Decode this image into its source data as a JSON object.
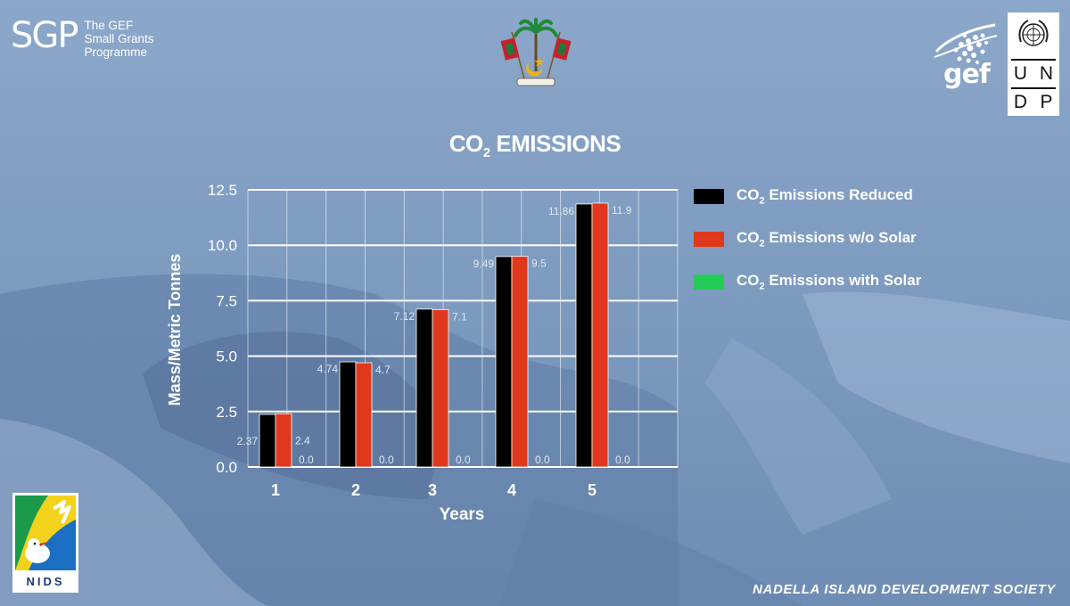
{
  "header": {
    "sgp_logo": {
      "big": "SGP",
      "lines": [
        "The GEF",
        "Small Grants",
        "Programme"
      ]
    },
    "emblem_icon": "maldives-emblem-icon",
    "gef_logo": {
      "text": "gef",
      "icon": "gef-globe-icon"
    },
    "undp_logo": {
      "letters": [
        "U",
        "N",
        "D",
        "P"
      ],
      "icon": "un-emblem-icon"
    }
  },
  "chart_title": {
    "main": "CO",
    "sub": "2",
    "rest": " EMISSIONS"
  },
  "chart_data": {
    "type": "bar",
    "title": "CO2 EMISSIONS",
    "xlabel": "Years",
    "ylabel": "Mass/Metric Tonnes",
    "categories": [
      "1",
      "2",
      "3",
      "4",
      "5"
    ],
    "ylim": [
      0,
      12.5
    ],
    "yticks": [
      "0.0",
      "2.5",
      "5.0",
      "7.5",
      "10.0",
      "12.5"
    ],
    "grid": true,
    "legend_position": "right",
    "series": [
      {
        "name": "CO2 Emissions Reduced",
        "values": [
          2.37,
          4.74,
          7.12,
          9.49,
          11.86
        ],
        "labels": [
          "2.37",
          "4.74",
          "7.12",
          "9.49",
          "11.86"
        ],
        "color": "#000000"
      },
      {
        "name": "CO2 Emissions w/o Solar",
        "values": [
          2.4,
          4.7,
          7.1,
          9.5,
          11.9
        ],
        "labels": [
          "2.4",
          "4.7",
          "7.1",
          "9.5",
          "11.9"
        ],
        "color": "#e0381c"
      },
      {
        "name": "CO2 Emissions with Solar",
        "values": [
          0,
          0,
          0,
          0,
          0
        ],
        "labels": [
          "0.0",
          "0.0",
          "0.0",
          "0.0",
          "0.0"
        ],
        "color": "#22cc55"
      }
    ]
  },
  "legend": [
    {
      "pre": "CO",
      "sub": "2",
      "post": " Emissions Reduced",
      "color": "#000000"
    },
    {
      "pre": "CO",
      "sub": "2",
      "post": " Emissions w/o Solar",
      "color": "#e0381c"
    },
    {
      "pre": "CO",
      "sub": "2",
      "post": " Emissions with Solar",
      "color": "#22cc55"
    }
  ],
  "nids_logo": {
    "text": "NIDS",
    "icon": "nids-bird-icon"
  },
  "footer": {
    "text": "NADELLA ISLAND DEVELOPMENT SOCIETY"
  },
  "colors": {
    "background": "#7f9cc0",
    "grid": "#ffffff"
  }
}
